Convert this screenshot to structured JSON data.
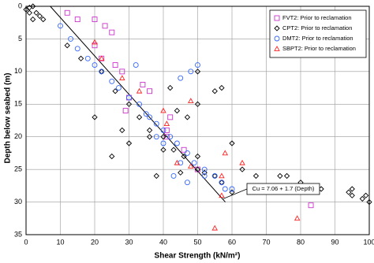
{
  "chart_data": {
    "type": "scatter",
    "x_label": "Shear Strength (kN/m²)",
    "y_label": "Depth below seabed (m)",
    "xlim": [
      0,
      100
    ],
    "ylim": [
      0,
      35
    ],
    "y_inverted": true,
    "grid": true,
    "legend": "top-right",
    "xticks": [
      0,
      10,
      20,
      30,
      40,
      50,
      60,
      70,
      80,
      90,
      100
    ],
    "yticks": [
      0,
      5,
      10,
      15,
      20,
      25,
      30,
      35
    ],
    "annotation": "Cu = 7.06 + 1.7 (Depth)",
    "fit_line": {
      "x": [
        7.06,
        58.06
      ],
      "values": [
        0,
        30
      ]
    },
    "series": [
      {
        "name": "FVT2: Prior to reclamation",
        "color": "#cc33cc",
        "marker": "square",
        "x": [
          12,
          15,
          20,
          23,
          25,
          20,
          22,
          26,
          28,
          34,
          36,
          29,
          30,
          42,
          41,
          46,
          50,
          78,
          83,
          41
        ],
        "values": [
          1,
          2,
          2,
          3,
          4,
          6,
          8,
          9,
          10,
          12,
          13,
          16,
          14,
          17,
          20,
          22,
          25,
          28,
          30.5,
          19
        ]
      },
      {
        "name": "CPT2: Prior to reclamation",
        "color": "#000000",
        "marker": "diamond",
        "x": [
          0,
          1,
          2,
          3,
          2,
          4,
          5,
          1,
          55,
          57,
          50,
          50,
          47,
          60,
          63,
          67,
          74,
          76,
          83,
          86,
          94,
          95,
          99,
          100,
          98,
          30,
          28,
          20,
          25,
          40,
          36,
          44,
          42,
          50,
          45,
          38,
          12,
          16,
          22,
          26,
          30,
          33,
          36,
          40,
          43,
          46,
          50,
          52,
          55,
          57,
          60,
          80,
          95
        ],
        "values": [
          0.5,
          0.2,
          0,
          1,
          2,
          1.5,
          2,
          1,
          13,
          12.5,
          15,
          10,
          17,
          21,
          25,
          26,
          26,
          26,
          28,
          28,
          28.5,
          29,
          29,
          30,
          29.5,
          21,
          19,
          17,
          23,
          22,
          20,
          16,
          12.5,
          23,
          25.5,
          26,
          6,
          8,
          10,
          13,
          15,
          17,
          19,
          20,
          22,
          23,
          25,
          25.5,
          26,
          27,
          28.5,
          27,
          28
        ]
      },
      {
        "name": "DMT2: Prior to reclamation",
        "color": "#3366ff",
        "marker": "circle",
        "x": [
          10,
          13,
          15,
          18,
          20,
          22,
          25,
          27,
          30,
          33,
          35,
          38,
          40,
          42,
          44,
          47,
          49,
          52,
          55,
          57,
          58,
          60,
          50,
          48,
          45,
          32,
          40,
          43,
          45,
          47,
          52,
          38,
          36
        ],
        "values": [
          3,
          5,
          6.5,
          8,
          9,
          10,
          11.5,
          12.5,
          14,
          15,
          16.5,
          18,
          19,
          20,
          21,
          22.5,
          24,
          25,
          26,
          27,
          28,
          28,
          9,
          10,
          11,
          9,
          21,
          26,
          24,
          27,
          26,
          20,
          17
        ]
      },
      {
        "name": "SBPT2: Prior to reclamation",
        "color": "#ff2222",
        "marker": "triangle",
        "x": [
          20,
          22,
          28,
          33,
          40,
          41,
          48,
          44,
          48,
          57,
          57,
          58,
          63,
          79,
          55
        ],
        "values": [
          5.5,
          8,
          11,
          13,
          16,
          18,
          14.5,
          24,
          24.5,
          26,
          29,
          22.5,
          24,
          32.5,
          34
        ]
      }
    ]
  }
}
